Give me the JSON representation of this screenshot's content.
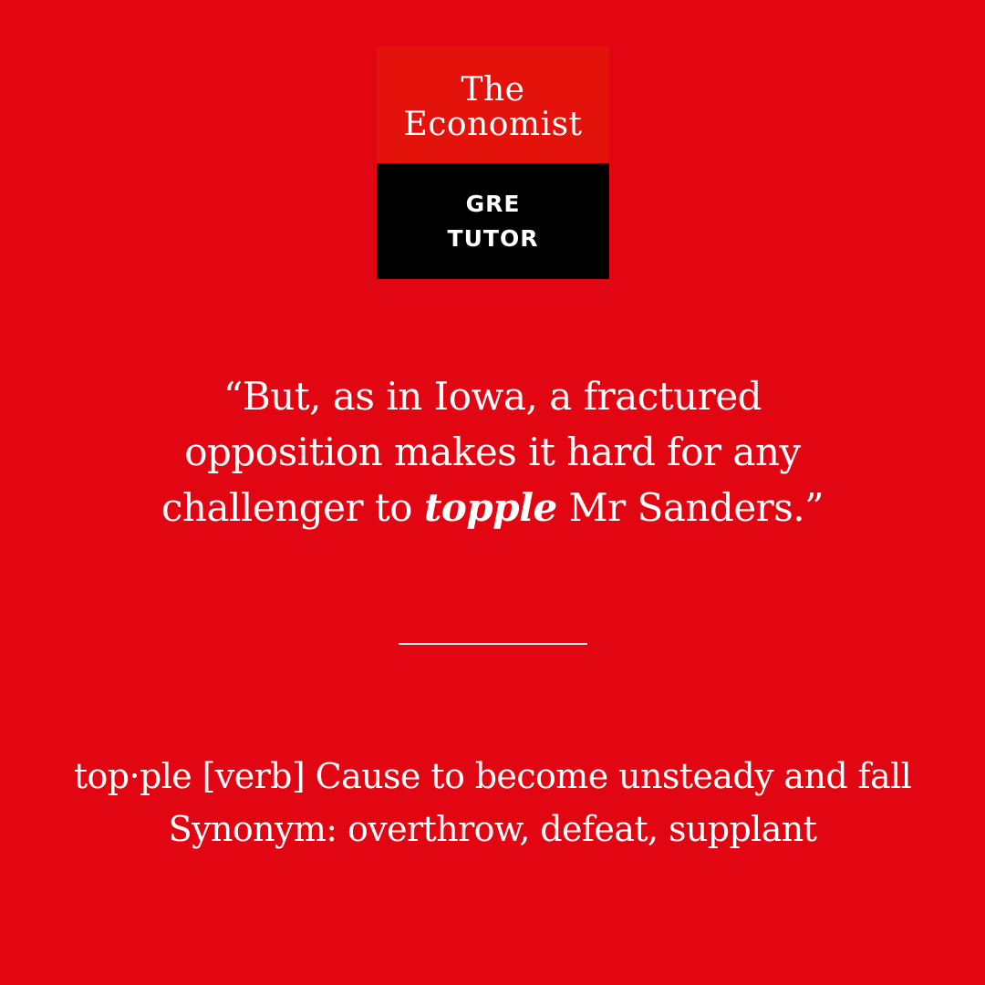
{
  "logo": {
    "brand_line1": "The",
    "brand_line2": "Economist",
    "product_line1": "GRE",
    "product_line2": "TUTOR"
  },
  "quote": {
    "line1": "“But, as in Iowa, a fractured",
    "line2": "opposition makes it hard for any",
    "line3_before": "challenger to ",
    "keyword": "topple",
    "line3_after": " Mr Sanders.”"
  },
  "definition": {
    "line1": "top·ple [verb] Cause to become unsteady and fall",
    "line2": "Synonym: overthrow, defeat, supplant"
  },
  "colors": {
    "background": "#e20613",
    "logo_red": "#e3120b",
    "logo_black": "#000000",
    "text": "#ffffff"
  }
}
